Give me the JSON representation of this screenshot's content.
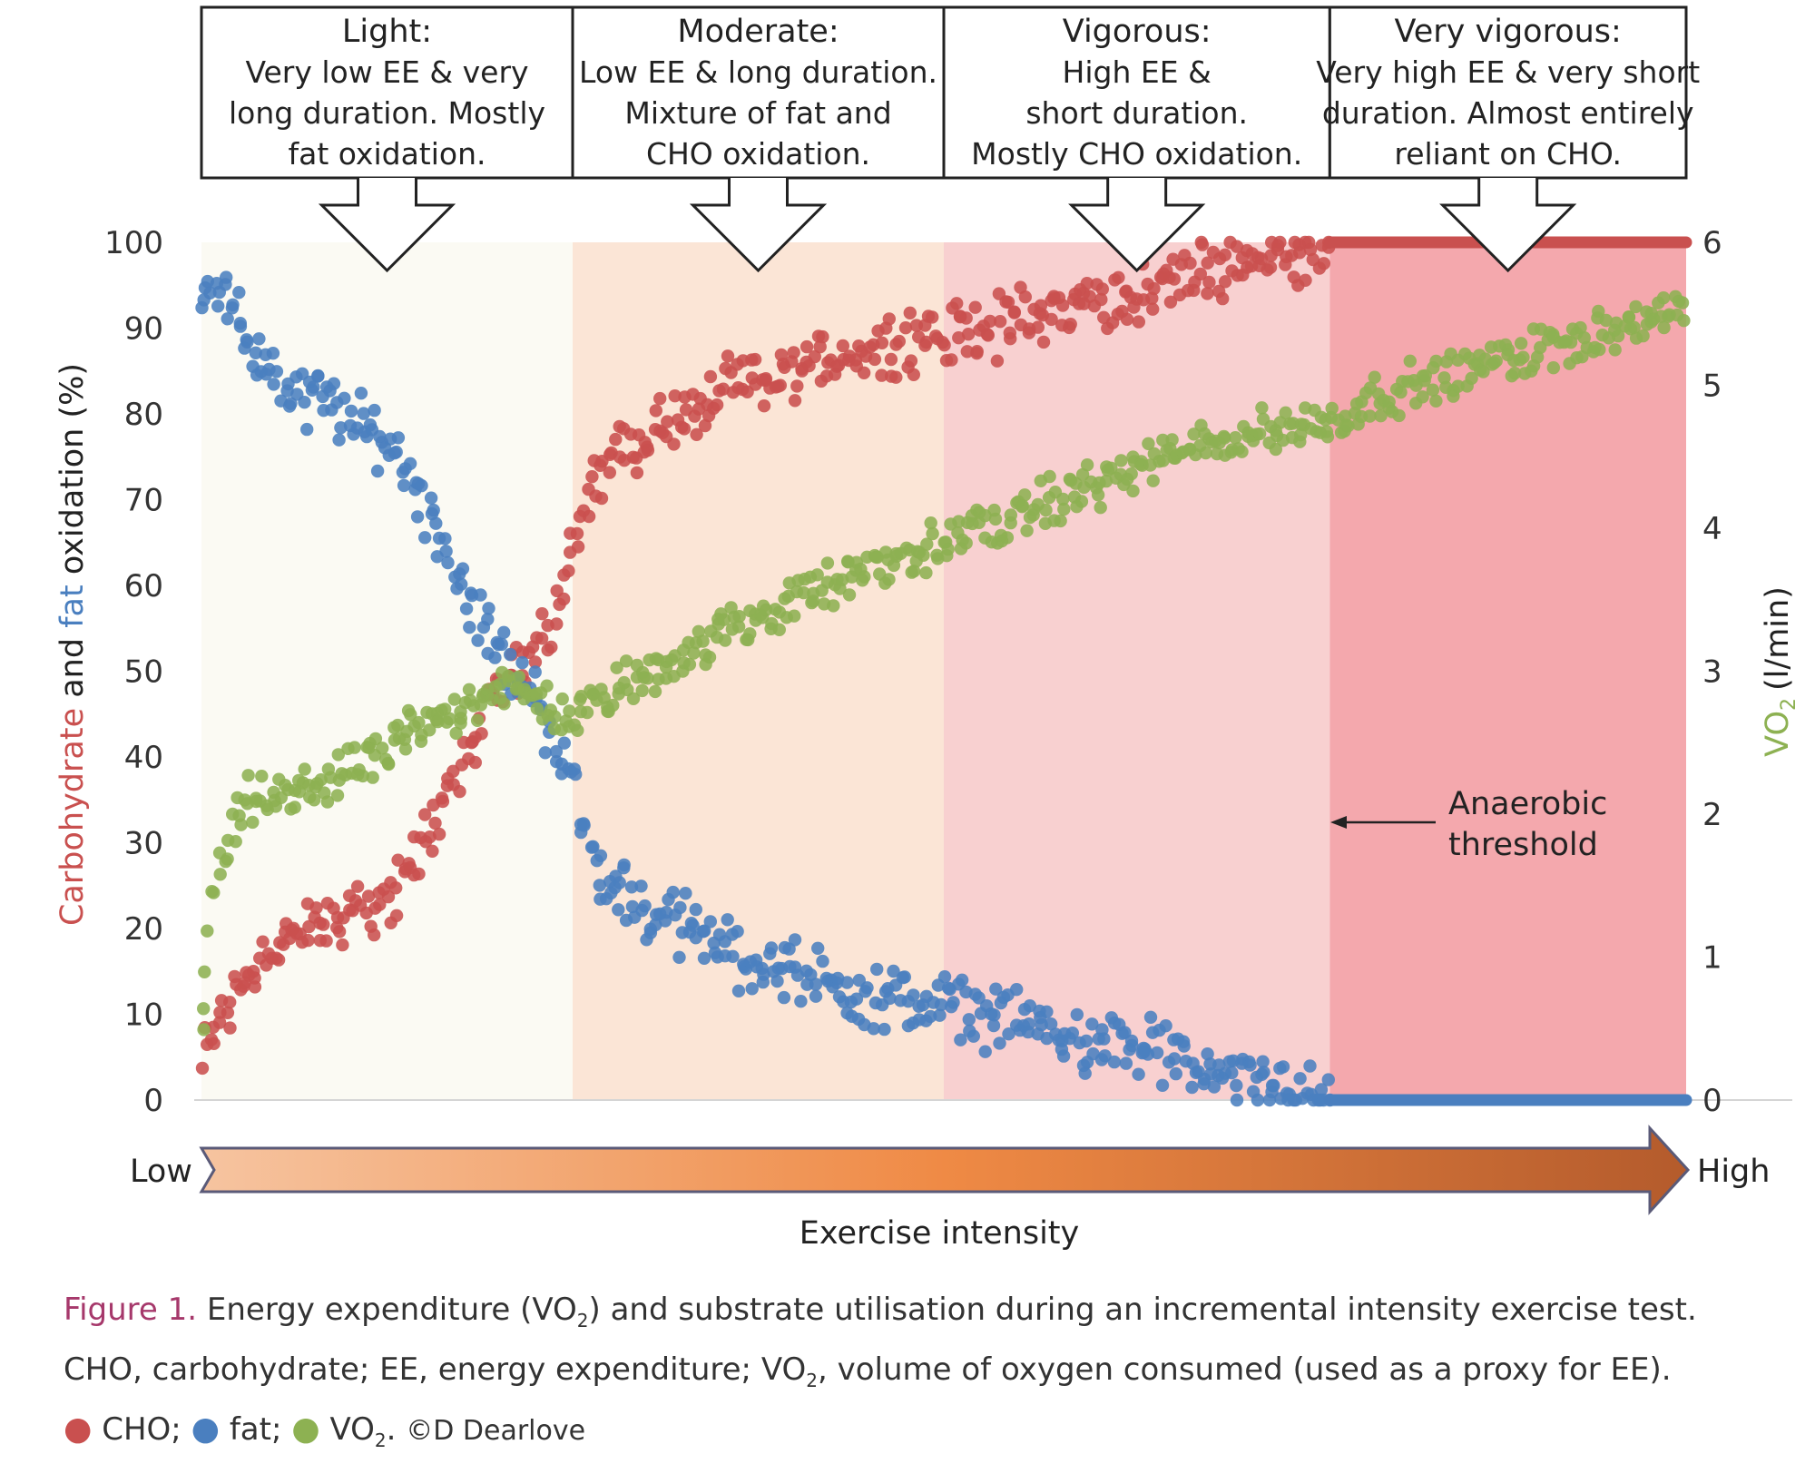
{
  "colors": {
    "cho": "#c9504f",
    "fat": "#4a7fbf",
    "vo2": "#8db152",
    "fig_label": "#a6386b"
  },
  "zones": [
    {
      "title": "Light:",
      "lines": [
        "Very low EE & very",
        "long duration. Mostly",
        "fat oxidation."
      ],
      "x_range": [
        0,
        25
      ],
      "fill": "#fbfaf3"
    },
    {
      "title": "Moderate:",
      "lines": [
        "Low EE & long duration.",
        "Mixture of fat and",
        "CHO oxidation."
      ],
      "x_range": [
        25,
        50
      ],
      "fill": "#fbe5d6"
    },
    {
      "title": "Vigorous:",
      "lines": [
        "High EE &",
        "short duration.",
        "Mostly CHO oxidation."
      ],
      "x_range": [
        50,
        76
      ],
      "fill": "#f8d0d0"
    },
    {
      "title": "Very vigorous:",
      "lines": [
        "Very high EE & very short",
        "duration. Almost entirely",
        "reliant on CHO."
      ],
      "x_range": [
        76,
        100
      ],
      "fill": "#f4a8ad"
    }
  ],
  "annotation": {
    "lines": [
      "Anaerobic",
      "threshold"
    ],
    "x": 76,
    "y": 32
  },
  "intensity_arrow": {
    "low": "Low",
    "high": "High",
    "label": "Exercise intensity"
  },
  "caption": {
    "fig_label": "Figure 1.",
    "line1_a": "Energy expenditure (VO",
    "line1_sub": "2",
    "line1_b": ") and substrate utilisation during an incremental intensity exercise test.",
    "line2_a": "CHO, carbohydrate; EE, energy expenditure; VO",
    "line2_sub": "2",
    "line2_b": ", volume of oxygen consumed (used as a proxy for EE).",
    "key_dot": "●",
    "key_cho": "CHO;",
    "key_fat": "fat;",
    "key_vo2_a": "VO",
    "key_vo2_sub": "2",
    "key_vo2_b": ".",
    "credit": "©D Dearlove"
  },
  "chart_data": {
    "type": "scatter",
    "x_domain": [
      0,
      100
    ],
    "y_left": {
      "label_parts": [
        {
          "text": "Carbohydrate",
          "color": "#c9504f"
        },
        {
          "text": " and ",
          "color": "#222222"
        },
        {
          "text": "fat",
          "color": "#4a7fbf"
        },
        {
          "text": " oxidation (%)",
          "color": "#222222"
        }
      ],
      "range": [
        0,
        100
      ],
      "ticks": [
        0,
        10,
        20,
        30,
        40,
        50,
        60,
        70,
        80,
        90,
        100
      ]
    },
    "y_right": {
      "label_main": "VO",
      "label_sub": "2",
      "label_unit": "(l/min)",
      "range": [
        0,
        6
      ],
      "ticks": [
        0,
        1,
        2,
        3,
        4,
        5,
        6
      ]
    },
    "series": [
      {
        "name": "CHO",
        "axis": "left",
        "color": "#c9504f",
        "trend": [
          [
            0,
            4
          ],
          [
            1,
            9
          ],
          [
            3,
            15
          ],
          [
            5,
            18
          ],
          [
            8,
            20
          ],
          [
            10,
            22
          ],
          [
            13,
            24
          ],
          [
            15,
            30
          ],
          [
            18,
            41
          ],
          [
            20,
            48
          ],
          [
            22,
            52
          ],
          [
            24,
            58
          ],
          [
            25,
            64
          ],
          [
            27,
            74
          ],
          [
            30,
            78
          ],
          [
            33,
            80
          ],
          [
            36,
            83
          ],
          [
            40,
            85
          ],
          [
            45,
            88
          ],
          [
            50,
            89
          ],
          [
            55,
            91
          ],
          [
            60,
            93
          ],
          [
            65,
            95
          ],
          [
            70,
            98
          ],
          [
            74,
            99
          ],
          [
            76,
            100
          ]
        ],
        "spread": 3.2,
        "plateau": {
          "from": 76,
          "to": 100,
          "value": 100
        }
      },
      {
        "name": "fat",
        "axis": "left",
        "color": "#4a7fbf",
        "trend": [
          [
            0,
            96
          ],
          [
            2,
            92
          ],
          [
            4,
            86
          ],
          [
            6,
            82
          ],
          [
            8,
            82
          ],
          [
            10,
            79
          ],
          [
            13,
            76
          ],
          [
            15,
            70
          ],
          [
            18,
            59
          ],
          [
            20,
            52
          ],
          [
            22,
            48
          ],
          [
            24,
            42
          ],
          [
            25,
            36
          ],
          [
            27,
            26
          ],
          [
            30,
            22
          ],
          [
            33,
            20
          ],
          [
            36,
            17
          ],
          [
            40,
            15
          ],
          [
            45,
            12
          ],
          [
            50,
            11
          ],
          [
            55,
            9
          ],
          [
            60,
            7
          ],
          [
            65,
            5
          ],
          [
            70,
            2
          ],
          [
            74,
            1
          ],
          [
            76,
            0
          ]
        ],
        "spread": 3.2,
        "plateau": {
          "from": 76,
          "to": 100,
          "value": 0
        }
      },
      {
        "name": "VO2",
        "axis": "right",
        "color": "#8db152",
        "trend": [
          [
            0,
            0.5
          ],
          [
            1,
            1.6
          ],
          [
            3,
            2.1
          ],
          [
            5,
            2.1
          ],
          [
            8,
            2.2
          ],
          [
            10,
            2.3
          ],
          [
            13,
            2.5
          ],
          [
            15,
            2.6
          ],
          [
            18,
            2.8
          ],
          [
            20,
            2.9
          ],
          [
            22,
            2.8
          ],
          [
            25,
            2.7
          ],
          [
            27,
            2.8
          ],
          [
            30,
            3.0
          ],
          [
            35,
            3.25
          ],
          [
            40,
            3.5
          ],
          [
            45,
            3.7
          ],
          [
            50,
            3.9
          ],
          [
            55,
            4.1
          ],
          [
            60,
            4.3
          ],
          [
            65,
            4.5
          ],
          [
            70,
            4.65
          ],
          [
            76,
            4.75
          ],
          [
            80,
            4.95
          ],
          [
            85,
            5.1
          ],
          [
            90,
            5.25
          ],
          [
            95,
            5.4
          ],
          [
            100,
            5.5
          ]
        ],
        "spread": 0.14
      }
    ]
  }
}
